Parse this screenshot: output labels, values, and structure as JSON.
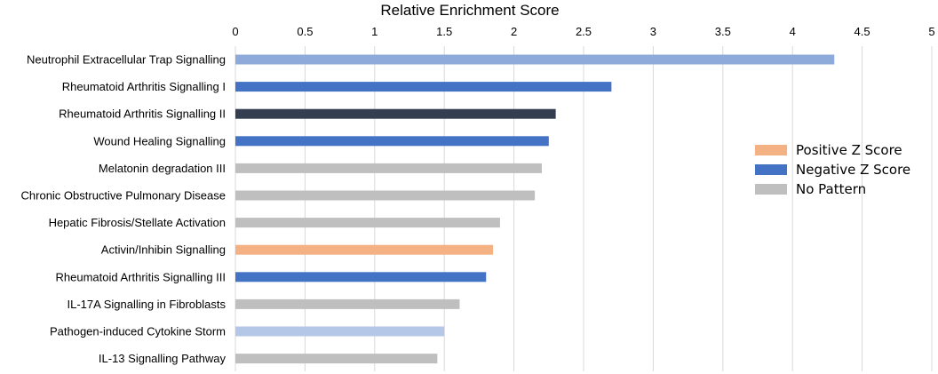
{
  "chart_data": {
    "type": "bar",
    "orientation": "horizontal",
    "title": "Relative Enrichment Score",
    "xlabel": "Relative Enrichment Score",
    "ylabel": "",
    "xlim": [
      0,
      5
    ],
    "x_ticks": [
      "0",
      "0.5",
      "1",
      "1.5",
      "2",
      "2.5",
      "3",
      "3.5",
      "4",
      "4.5",
      "5"
    ],
    "grid": true,
    "legend_position": "right",
    "legend": [
      {
        "label": "Positive Z Score",
        "color": "#f4b183"
      },
      {
        "label": "Negative Z Score",
        "color": "#4472c4"
      },
      {
        "label": "No Pattern",
        "color": "#bfbfbf"
      }
    ],
    "categories": [
      "Neutrophil Extracellular Trap Signalling",
      "Rheumatoid Arthritis Signalling I",
      "Rheumatoid Arthritis Signalling II",
      "Wound Healing Signalling",
      "Melatonin degradation III",
      "Chronic Obstructive Pulmonary Disease",
      "Hepatic Fibrosis/Stellate Activation",
      "Activin/Inhibin Signalling",
      "Rheumatoid Arthritis Signalling III",
      "IL-17A Signalling in Fibroblasts",
      "Pathogen-induced Cytokine Storm",
      "IL-13 Signalling Pathway"
    ],
    "values": [
      4.3,
      2.7,
      2.3,
      2.25,
      2.2,
      2.15,
      1.9,
      1.85,
      1.8,
      1.61,
      1.5,
      1.45
    ],
    "colors": [
      "#8eaadb",
      "#4472c4",
      "#333f50",
      "#4472c4",
      "#bfbfbf",
      "#bfbfbf",
      "#bfbfbf",
      "#f4b183",
      "#4472c4",
      "#bfbfbf",
      "#b4c7e7",
      "#bfbfbf"
    ]
  }
}
